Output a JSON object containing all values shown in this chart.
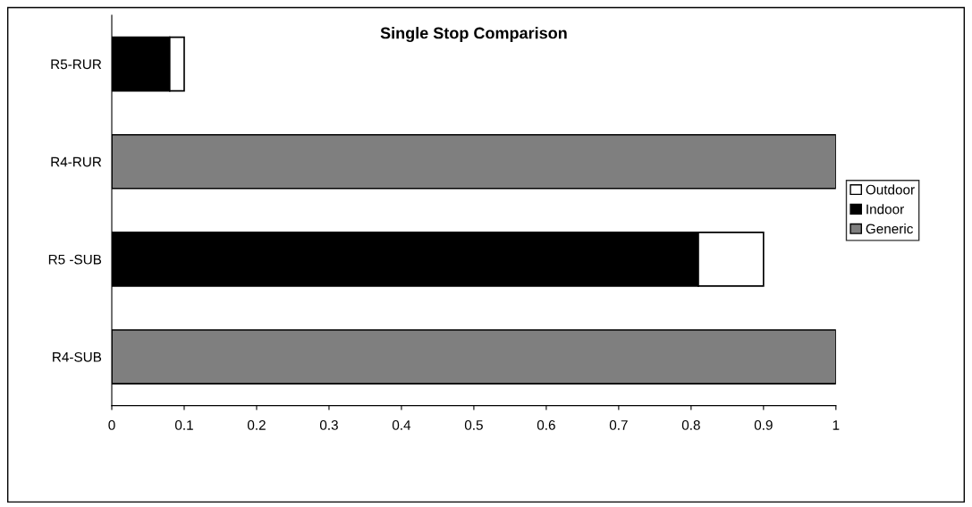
{
  "chart_data": {
    "type": "bar",
    "orientation": "horizontal",
    "stacked": true,
    "title": "Single Stop Comparison",
    "categories": [
      "R5-RUR",
      "R4-RUR",
      "R5 -SUB",
      "R4-SUB"
    ],
    "series": [
      {
        "name": "Generic",
        "color": "#7f7f7f",
        "values": [
          null,
          1,
          null,
          1
        ]
      },
      {
        "name": "Indoor",
        "color": "#000000",
        "values": [
          0.08,
          null,
          0.81,
          null
        ]
      },
      {
        "name": "Outdoor",
        "color": "#ffffff",
        "values": [
          0.02,
          null,
          0.09,
          null
        ]
      }
    ],
    "xlim": [
      0,
      1
    ],
    "xticks": [
      0,
      0.1,
      0.2,
      0.3,
      0.4,
      0.5,
      0.6,
      0.7,
      0.8,
      0.9,
      1
    ],
    "grid": false,
    "legend": "right"
  }
}
